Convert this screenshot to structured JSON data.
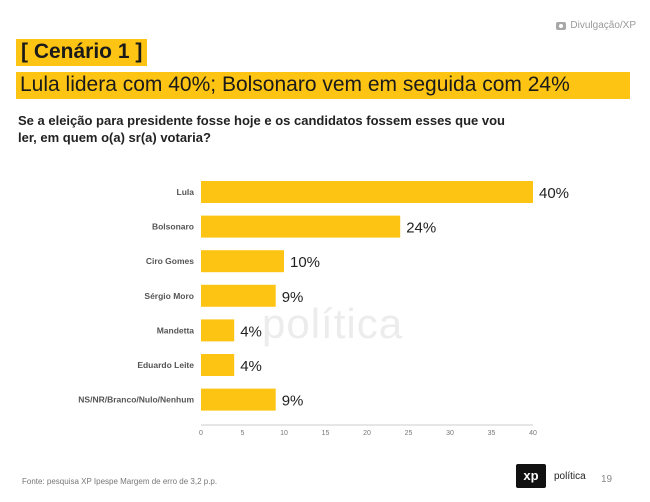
{
  "credit": "Divulgação/XP",
  "scenario_label": "[ Cenário 1 ]",
  "headline": "Lula lidera com 40%;  Bolsonaro vem em seguida com 24%",
  "question_line1": "Se a eleição para presidente fosse hoje e os candidatos fossem esses que vou",
  "question_line2": "ler, em quem o(a) sr(a) votaria?",
  "watermark": "política",
  "footer": "Fonte: pesquisa XP Ipespe Margem de erro de 3,2 p.p.",
  "brand": {
    "logo": "xp",
    "word": "política"
  },
  "page_number": "19",
  "colors": {
    "bar": "#fdc413",
    "accent": "#fdc413",
    "text": "#222222"
  },
  "chart_data": {
    "type": "bar",
    "orientation": "horizontal",
    "categories": [
      "Lula",
      "Bolsonaro",
      "Ciro Gomes",
      "Sérgio Moro",
      "Mandetta",
      "Eduardo Leite",
      "NS/NR/Branco/Nulo/Nenhum"
    ],
    "values": [
      40,
      24,
      10,
      9,
      4,
      4,
      9
    ],
    "value_labels": [
      "40%",
      "24%",
      "10%",
      "9%",
      "4%",
      "4%",
      "9%"
    ],
    "xlim": [
      0,
      40
    ],
    "xticks": [
      "0",
      "5",
      "10",
      "15",
      "20",
      "25",
      "30",
      "35",
      "40"
    ],
    "grid": false
  }
}
